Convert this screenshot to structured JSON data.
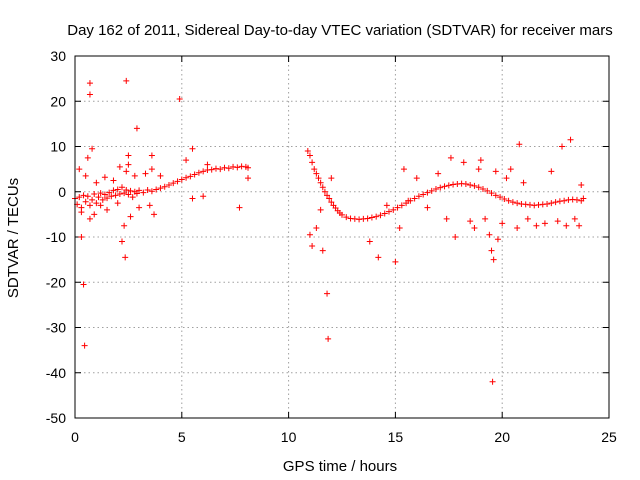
{
  "chart_data": {
    "type": "scatter",
    "title": "Day 162 of 2011, Sidereal Day-to-day VTEC variation (SDTVAR) for receiver mars",
    "xlabel": "GPS time / hours",
    "ylabel": "SDTVAR / TECUs",
    "xlim": [
      0,
      25
    ],
    "ylim": [
      -50,
      30
    ],
    "xticks": [
      0,
      5,
      10,
      15,
      20,
      25
    ],
    "yticks": [
      -50,
      -40,
      -30,
      -20,
      -10,
      0,
      10,
      20,
      30
    ],
    "grid": true,
    "marker": "+",
    "color": "#ff0000",
    "series": [
      {
        "name": "SDTVAR",
        "points": [
          [
            0.0,
            -1.5
          ],
          [
            0.1,
            -2.8
          ],
          [
            0.2,
            -1.2
          ],
          [
            0.3,
            -3.5
          ],
          [
            0.4,
            -0.8
          ],
          [
            0.5,
            -2.2
          ],
          [
            0.6,
            -1.0
          ],
          [
            0.7,
            -3.0
          ],
          [
            0.8,
            -1.8
          ],
          [
            0.9,
            -0.5
          ],
          [
            1.0,
            -2.5
          ],
          [
            1.1,
            -1.2
          ],
          [
            1.2,
            -0.3
          ],
          [
            1.3,
            -1.8
          ],
          [
            1.4,
            -0.6
          ],
          [
            1.5,
            -1.4
          ],
          [
            1.6,
            -0.2
          ],
          [
            1.7,
            -1.0
          ],
          [
            1.8,
            0.3
          ],
          [
            1.9,
            -0.8
          ],
          [
            2.0,
            0.5
          ],
          [
            2.1,
            -0.5
          ],
          [
            2.2,
            1.0
          ],
          [
            2.3,
            -0.3
          ],
          [
            2.4,
            0.4
          ],
          [
            2.5,
            -0.6
          ],
          [
            2.6,
            0.2
          ],
          [
            2.7,
            -1.2
          ],
          [
            2.8,
            0.0
          ],
          [
            2.9,
            -0.4
          ],
          [
            3.0,
            0.3
          ],
          [
            3.2,
            -0.2
          ],
          [
            3.4,
            0.4
          ],
          [
            3.6,
            0.1
          ],
          [
            3.8,
            0.5
          ],
          [
            4.0,
            0.8
          ],
          [
            4.2,
            1.1
          ],
          [
            4.4,
            1.5
          ],
          [
            4.6,
            1.9
          ],
          [
            4.8,
            2.3
          ],
          [
            5.0,
            2.7
          ],
          [
            5.2,
            3.1
          ],
          [
            5.4,
            3.4
          ],
          [
            5.6,
            3.8
          ],
          [
            5.8,
            4.2
          ],
          [
            6.0,
            4.5
          ],
          [
            6.2,
            4.8
          ],
          [
            6.4,
            4.9
          ],
          [
            6.6,
            5.1
          ],
          [
            6.8,
            5.0
          ],
          [
            7.0,
            5.3
          ],
          [
            7.2,
            5.2
          ],
          [
            7.4,
            5.5
          ],
          [
            7.6,
            5.4
          ],
          [
            7.8,
            5.6
          ],
          [
            8.0,
            5.5
          ],
          [
            8.1,
            5.3
          ],
          [
            0.2,
            5.0
          ],
          [
            0.3,
            -4.5
          ],
          [
            0.5,
            3.5
          ],
          [
            0.6,
            7.5
          ],
          [
            0.7,
            -6.0
          ],
          [
            0.8,
            9.5
          ],
          [
            0.9,
            -5.0
          ],
          [
            1.0,
            2.0
          ],
          [
            1.2,
            -3.0
          ],
          [
            1.4,
            3.2
          ],
          [
            1.5,
            -4.0
          ],
          [
            1.8,
            2.5
          ],
          [
            2.0,
            -2.5
          ],
          [
            2.1,
            5.5
          ],
          [
            2.2,
            -11.0
          ],
          [
            2.3,
            -7.5
          ],
          [
            2.35,
            -14.5
          ],
          [
            2.4,
            4.5
          ],
          [
            2.5,
            6.0
          ],
          [
            2.6,
            -5.5
          ],
          [
            2.8,
            3.5
          ],
          [
            3.0,
            -3.5
          ],
          [
            3.3,
            4.0
          ],
          [
            3.5,
            -3.0
          ],
          [
            3.6,
            5.0
          ],
          [
            3.7,
            -5.0
          ],
          [
            4.0,
            3.5
          ],
          [
            5.2,
            7.0
          ],
          [
            5.5,
            9.5
          ],
          [
            5.5,
            -1.5
          ],
          [
            6.0,
            -1.0
          ],
          [
            6.2,
            6.0
          ],
          [
            7.7,
            -3.5
          ],
          [
            8.1,
            3.0
          ],
          [
            0.3,
            -10.0
          ],
          [
            0.4,
            -20.5
          ],
          [
            0.45,
            -34.0
          ],
          [
            0.7,
            24.0
          ],
          [
            0.7,
            21.5
          ],
          [
            2.4,
            24.5
          ],
          [
            2.9,
            14.0
          ],
          [
            4.9,
            20.5
          ],
          [
            3.6,
            8.0
          ],
          [
            2.5,
            8.0
          ],
          [
            10.9,
            9.0
          ],
          [
            11.0,
            8.0
          ],
          [
            11.1,
            6.5
          ],
          [
            11.2,
            5.0
          ],
          [
            11.3,
            4.0
          ],
          [
            11.4,
            3.0
          ],
          [
            11.5,
            2.0
          ],
          [
            11.6,
            1.0
          ],
          [
            11.7,
            0.0
          ],
          [
            11.8,
            -0.8
          ],
          [
            11.9,
            -1.5
          ],
          [
            12.0,
            -2.3
          ],
          [
            12.1,
            -3.0
          ],
          [
            12.2,
            -3.6
          ],
          [
            12.3,
            -4.2
          ],
          [
            12.4,
            -4.7
          ],
          [
            12.5,
            -5.1
          ],
          [
            12.7,
            -5.6
          ],
          [
            12.9,
            -5.9
          ],
          [
            13.1,
            -6.0
          ],
          [
            13.3,
            -6.1
          ],
          [
            13.5,
            -6.0
          ],
          [
            13.7,
            -5.9
          ],
          [
            13.9,
            -5.7
          ],
          [
            14.1,
            -5.5
          ],
          [
            14.3,
            -5.2
          ],
          [
            14.5,
            -4.8
          ],
          [
            14.7,
            -4.4
          ],
          [
            14.9,
            -4.0
          ],
          [
            15.1,
            -3.5
          ],
          [
            15.3,
            -3.0
          ],
          [
            15.5,
            -2.5
          ],
          [
            15.7,
            -2.0
          ],
          [
            15.9,
            -1.5
          ],
          [
            16.1,
            -1.0
          ],
          [
            16.3,
            -0.6
          ],
          [
            16.5,
            -0.2
          ],
          [
            16.7,
            0.2
          ],
          [
            16.9,
            0.6
          ],
          [
            17.1,
            0.9
          ],
          [
            17.3,
            1.2
          ],
          [
            17.5,
            1.4
          ],
          [
            17.7,
            1.6
          ],
          [
            17.9,
            1.7
          ],
          [
            18.1,
            1.8
          ],
          [
            18.3,
            1.7
          ],
          [
            18.5,
            1.5
          ],
          [
            18.7,
            1.3
          ],
          [
            18.9,
            1.0
          ],
          [
            19.1,
            0.6
          ],
          [
            19.3,
            0.2
          ],
          [
            19.5,
            -0.3
          ],
          [
            19.7,
            -0.8
          ],
          [
            19.9,
            -1.2
          ],
          [
            20.1,
            -1.6
          ],
          [
            20.3,
            -2.0
          ],
          [
            20.5,
            -2.3
          ],
          [
            20.7,
            -2.5
          ],
          [
            20.9,
            -2.7
          ],
          [
            21.1,
            -2.8
          ],
          [
            21.3,
            -2.9
          ],
          [
            21.5,
            -3.0
          ],
          [
            21.7,
            -2.9
          ],
          [
            21.9,
            -2.8
          ],
          [
            22.1,
            -2.7
          ],
          [
            22.3,
            -2.5
          ],
          [
            22.5,
            -2.3
          ],
          [
            22.7,
            -2.1
          ],
          [
            22.9,
            -2.0
          ],
          [
            23.1,
            -1.8
          ],
          [
            23.3,
            -1.7
          ],
          [
            23.5,
            -1.8
          ],
          [
            23.7,
            -2.0
          ],
          [
            23.8,
            -1.5
          ],
          [
            11.0,
            -9.5
          ],
          [
            11.1,
            -12.0
          ],
          [
            11.3,
            -8.0
          ],
          [
            11.5,
            -4.0
          ],
          [
            11.6,
            -13.0
          ],
          [
            11.8,
            -22.5
          ],
          [
            11.85,
            -32.5
          ],
          [
            12.0,
            3.0
          ],
          [
            13.8,
            -11.0
          ],
          [
            14.2,
            -14.5
          ],
          [
            14.6,
            -3.0
          ],
          [
            15.0,
            -15.5
          ],
          [
            15.2,
            -8.0
          ],
          [
            15.4,
            5.0
          ],
          [
            15.6,
            -2.0
          ],
          [
            16.0,
            3.0
          ],
          [
            16.5,
            -3.5
          ],
          [
            17.0,
            4.0
          ],
          [
            17.4,
            -6.0
          ],
          [
            17.6,
            7.5
          ],
          [
            17.8,
            -10.0
          ],
          [
            18.2,
            6.5
          ],
          [
            18.5,
            -6.5
          ],
          [
            18.7,
            -8.0
          ],
          [
            18.9,
            5.0
          ],
          [
            19.2,
            -6.0
          ],
          [
            19.4,
            -9.5
          ],
          [
            19.5,
            -13.0
          ],
          [
            19.55,
            -42.0
          ],
          [
            19.6,
            -15.0
          ],
          [
            19.7,
            4.5
          ],
          [
            19.8,
            -10.5
          ],
          [
            20.0,
            -7.0
          ],
          [
            20.4,
            5.0
          ],
          [
            20.7,
            -8.0
          ],
          [
            20.8,
            10.5
          ],
          [
            21.2,
            -6.0
          ],
          [
            21.6,
            -7.5
          ],
          [
            22.0,
            -7.0
          ],
          [
            22.3,
            4.5
          ],
          [
            22.6,
            -6.5
          ],
          [
            22.8,
            10.0
          ],
          [
            23.0,
            -7.5
          ],
          [
            23.2,
            11.5
          ],
          [
            23.4,
            -6.0
          ],
          [
            23.6,
            -7.5
          ],
          [
            23.7,
            1.5
          ],
          [
            19.0,
            7.0
          ],
          [
            20.2,
            3.0
          ],
          [
            21.0,
            2.0
          ]
        ]
      }
    ]
  }
}
